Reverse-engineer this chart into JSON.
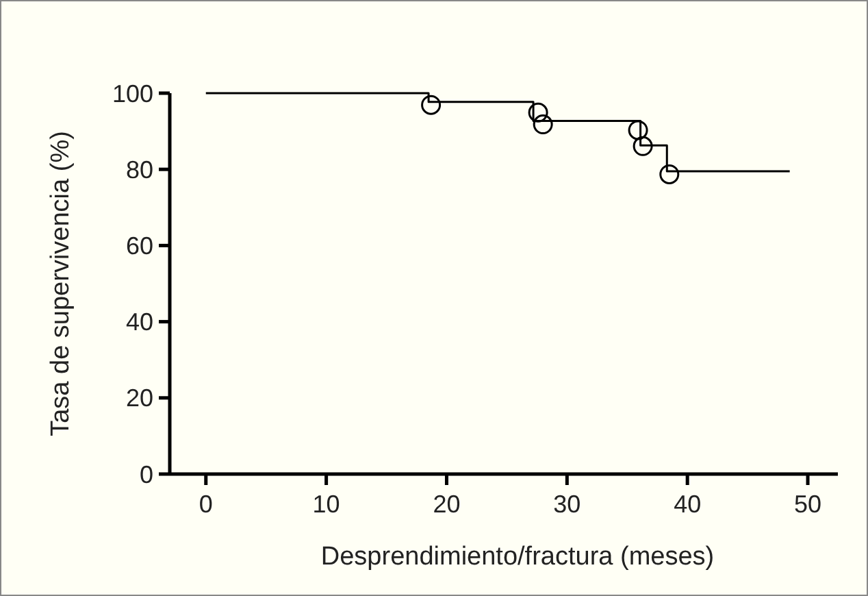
{
  "chart_data": {
    "type": "step",
    "xlabel": "Desprendimiento/fractura (meses)",
    "ylabel": "Tasa de supervivencia (%)",
    "series": [
      {
        "color": "#000000",
        "marker": "none",
        "x": [
          0,
          18.5,
          27.2,
          36.1,
          38.3,
          48.5
        ],
        "values": [
          100,
          97.7,
          92.7,
          86.3,
          79.5,
          79.5
        ]
      },
      {
        "type": "scatter",
        "color": "#000000",
        "marker": "circle",
        "x": [
          18.7,
          27.6,
          28.0,
          35.9,
          36.3,
          38.5
        ],
        "values": [
          96.9,
          94.9,
          91.8,
          90.3,
          86.1,
          78.7
        ]
      }
    ],
    "xlim": [
      -3,
      52.5
    ],
    "ylim": [
      0,
      100
    ],
    "xticks": [
      0,
      10,
      20,
      30,
      40,
      50
    ],
    "yticks": [
      0,
      20,
      40,
      60,
      80,
      100
    ],
    "grid": false
  }
}
